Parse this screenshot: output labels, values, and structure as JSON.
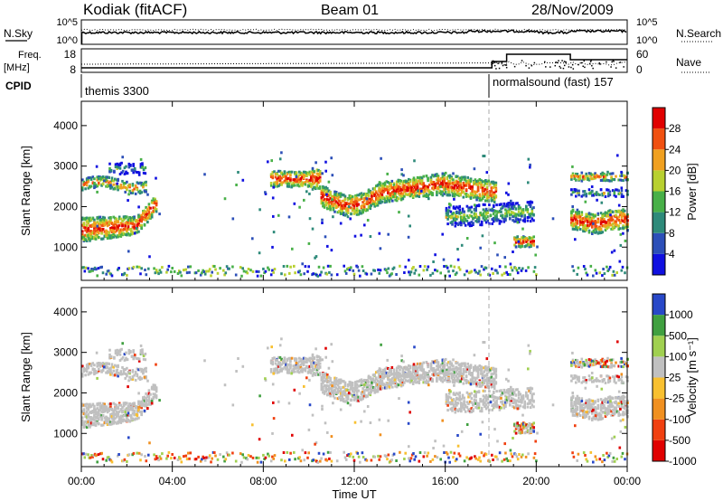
{
  "header": {
    "left": "Kodiak (fitACF)",
    "center": "Beam 01",
    "right": "28/Nov/2009"
  },
  "summary_panels": {
    "nsky": {
      "label": "N.Sky",
      "ticks": [
        "10^5",
        "10^0"
      ],
      "right_ticks": [
        "10^5",
        "10^0"
      ],
      "right_label": "N.Search"
    },
    "freq": {
      "label_line1": "Freq.",
      "label_line2": "[MHz]",
      "ticks": [
        "18",
        "8"
      ],
      "right_ticks": [
        "60",
        "0"
      ],
      "right_label": "Nave"
    },
    "cpid": {
      "label": "CPID",
      "programs": [
        "themis 3300",
        "normalsound (fast) 157"
      ]
    }
  },
  "colors": {
    "ground_scatter": "#c0c0c0",
    "power_scale": [
      "#1010e0",
      "#2c4fb8",
      "#2e8a7a",
      "#48b048",
      "#b8d030",
      "#f0a020",
      "#f05010",
      "#e00000"
    ],
    "velocity_scale": [
      "#e00000",
      "#f04010",
      "#f09020",
      "#f8c030",
      "#c0c0c0",
      "#a0d050",
      "#40a040",
      "#2848c8"
    ]
  },
  "chart_data": [
    {
      "type": "heatmap",
      "name": "power",
      "ylabel": "Slant Range [km]",
      "yticks": [
        1000,
        2000,
        3000,
        4000
      ],
      "ylim": [
        180,
        4600
      ],
      "xlim": [
        0,
        24
      ],
      "colorbar": {
        "label": "Power [dB]",
        "ticks": [
          "4",
          "8",
          "12",
          "16",
          "20",
          "24",
          "28"
        ]
      }
    },
    {
      "type": "heatmap",
      "name": "velocity",
      "ylabel": "Slant Range [km]",
      "yticks": [
        1000,
        2000,
        3000,
        4000
      ],
      "ylim": [
        180,
        4600
      ],
      "xlim": [
        0,
        24
      ],
      "colorbar": {
        "label": "Velocity [m s⁻¹]",
        "ticks": [
          "1000",
          "500",
          "100",
          "25",
          "-25",
          "-100",
          "-500",
          "-1000"
        ]
      }
    }
  ],
  "time_axis": {
    "ticks": [
      "00:00",
      "04:00",
      "08:00",
      "12:00",
      "16:00",
      "20:00",
      "00:00"
    ],
    "label": "Time UT"
  }
}
